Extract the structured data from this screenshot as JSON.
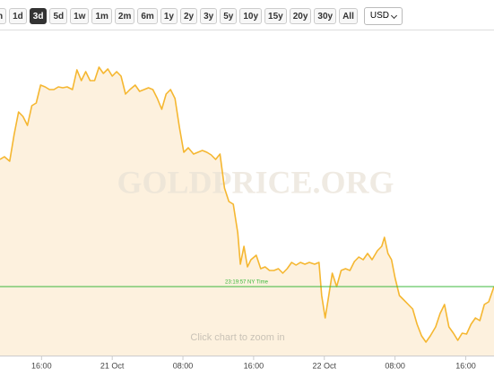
{
  "toolbar": {
    "buttons": [
      "h",
      "1d",
      "3d",
      "5d",
      "1w",
      "1m",
      "2m",
      "6m",
      "1y",
      "2y",
      "3y",
      "5y",
      "10y",
      "15y",
      "20y",
      "30y",
      "All"
    ],
    "active": 2,
    "currency": "USD"
  },
  "chart_data": {
    "type": "area",
    "watermark": "GOLDPRICE.ORG",
    "hint": "Click chart to zoom in",
    "color": "#f5b731",
    "fill": "#fdf1de",
    "x": [
      -12.7,
      -12.2,
      -11.6,
      -11.1,
      -10.6,
      -10.1,
      -9.6,
      -9.1,
      -8.6,
      -8.1,
      -7.6,
      -7.1,
      -6.6,
      -6.1,
      -5.6,
      -5.1,
      -4.5,
      -4.0,
      -3.5,
      -3.0,
      -2.5,
      -2.0,
      -1.5,
      -1.0,
      -0.5,
      0.0,
      0.5,
      1.0,
      1.5,
      2.0,
      2.6,
      3.1,
      3.6,
      4.1,
      4.6,
      5.1,
      5.6,
      6.1,
      6.6,
      7.1,
      7.6,
      8.1,
      8.6,
      9.2,
      9.7,
      10.2,
      10.7,
      11.2,
      11.7,
      12.2,
      12.7,
      13.2,
      13.7,
      14.2,
      14.5,
      14.9,
      15.3,
      15.7,
      16.3,
      16.8,
      17.3,
      17.8,
      18.3,
      18.8,
      19.3,
      19.8,
      20.3,
      20.8,
      21.3,
      21.8,
      22.3,
      22.9,
      23.4,
      23.7,
      24.1,
      24.5,
      24.9,
      25.4,
      25.9,
      26.4,
      26.9,
      27.4,
      27.9,
      28.4,
      28.9,
      29.4,
      30.0,
      30.5,
      30.8,
      31.2,
      31.6,
      32.0,
      32.5,
      33.0,
      33.5,
      34.0,
      34.5,
      35.0,
      35.5,
      36.0,
      36.6,
      37.1,
      37.6,
      38.1,
      38.6,
      39.1,
      39.6,
      40.1,
      40.6,
      41.1,
      41.6,
      42.1,
      42.6,
      43.2
    ],
    "values": [
      219,
      222,
      217,
      247,
      272,
      267,
      257,
      279,
      282,
      302,
      300,
      297,
      297,
      300,
      299,
      300,
      297,
      319,
      307,
      317,
      307,
      307,
      322,
      315,
      320,
      312,
      317,
      312,
      292,
      297,
      302,
      295,
      297,
      299,
      297,
      287,
      275,
      292,
      297,
      287,
      255,
      227,
      232,
      225,
      227,
      229,
      227,
      224,
      219,
      225,
      187,
      172,
      169,
      137,
      102,
      122,
      99,
      107,
      112,
      97,
      99,
      95,
      95,
      97,
      92,
      97,
      104,
      101,
      104,
      102,
      104,
      102,
      104,
      67,
      42,
      67,
      92,
      77,
      95,
      97,
      95,
      105,
      110,
      107,
      114,
      107,
      117,
      122,
      132,
      114,
      107,
      87,
      67,
      62,
      57,
      52,
      35,
      22,
      15,
      22,
      32,
      47,
      57,
      32,
      25,
      17,
      25,
      24,
      35,
      42,
      39,
      57,
      60,
      77
    ],
    "xlim": [
      -12.7,
      43.2
    ],
    "ylim": [
      0,
      357
    ],
    "xticks": [
      {
        "value": -8,
        "label": "16:00"
      },
      {
        "value": 0,
        "label": "21 Oct"
      },
      {
        "value": 8,
        "label": "08:00"
      },
      {
        "value": 16,
        "label": "16:00"
      },
      {
        "value": 24,
        "label": "22 Oct"
      },
      {
        "value": 32,
        "label": "08:00"
      },
      {
        "value": 40,
        "label": "16:00"
      }
    ],
    "reference_line": {
      "value": 77,
      "label": "23:19:57 NY Time",
      "color": "#3cb83c"
    }
  }
}
